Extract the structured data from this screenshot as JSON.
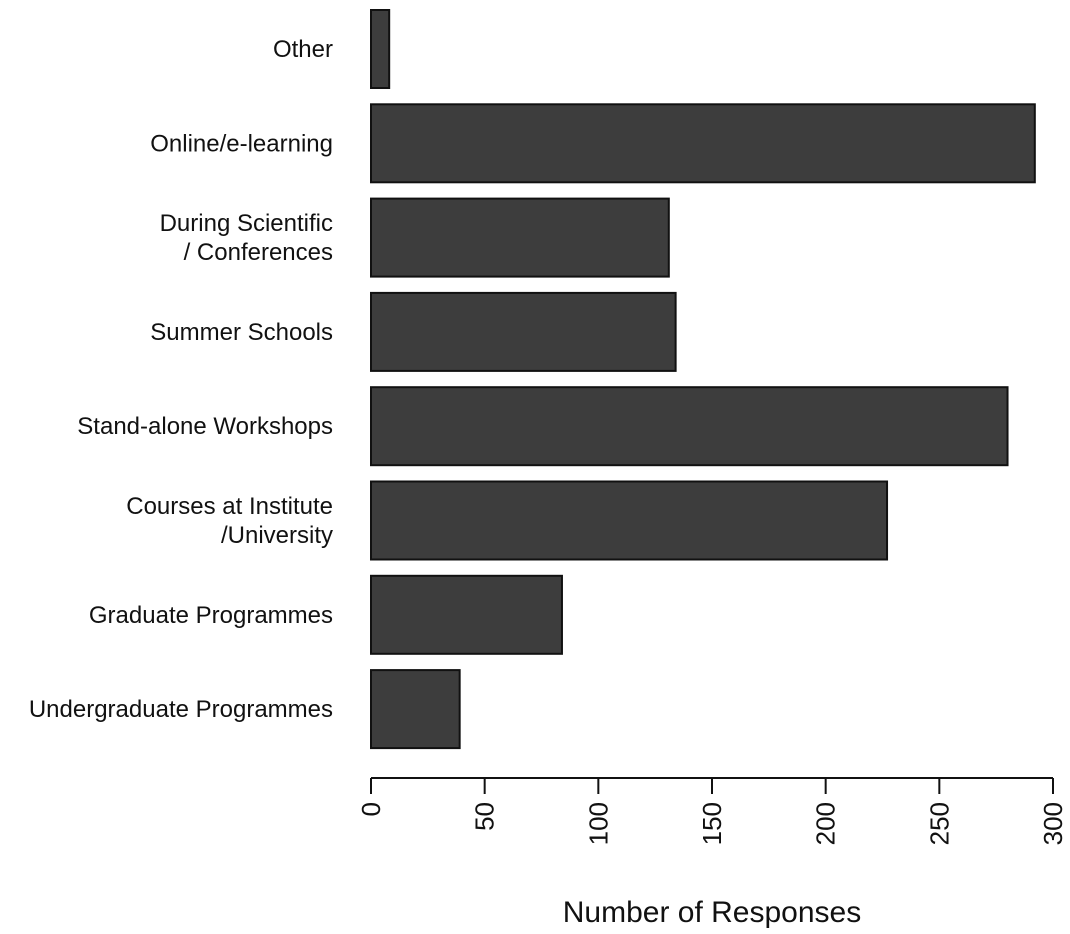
{
  "chart_data": {
    "type": "bar",
    "orientation": "horizontal",
    "categories": [
      [
        "Other"
      ],
      [
        "Online/e-learning"
      ],
      [
        "During Scientific",
        "/ Conferences"
      ],
      [
        "Summer Schools"
      ],
      [
        "Stand-alone Workshops"
      ],
      [
        "Courses at Institute",
        "/University"
      ],
      [
        "Graduate Programmes"
      ],
      [
        "Undergraduate Programmes"
      ]
    ],
    "values": [
      8,
      292,
      131,
      134,
      280,
      227,
      84,
      39
    ],
    "title": "",
    "xlabel": "Number of Responses",
    "ylabel": "",
    "xlim": [
      0,
      300
    ],
    "xticks": [
      0,
      50,
      100,
      150,
      200,
      250,
      300
    ],
    "grid": false,
    "bar_color": "#3d3d3d"
  }
}
